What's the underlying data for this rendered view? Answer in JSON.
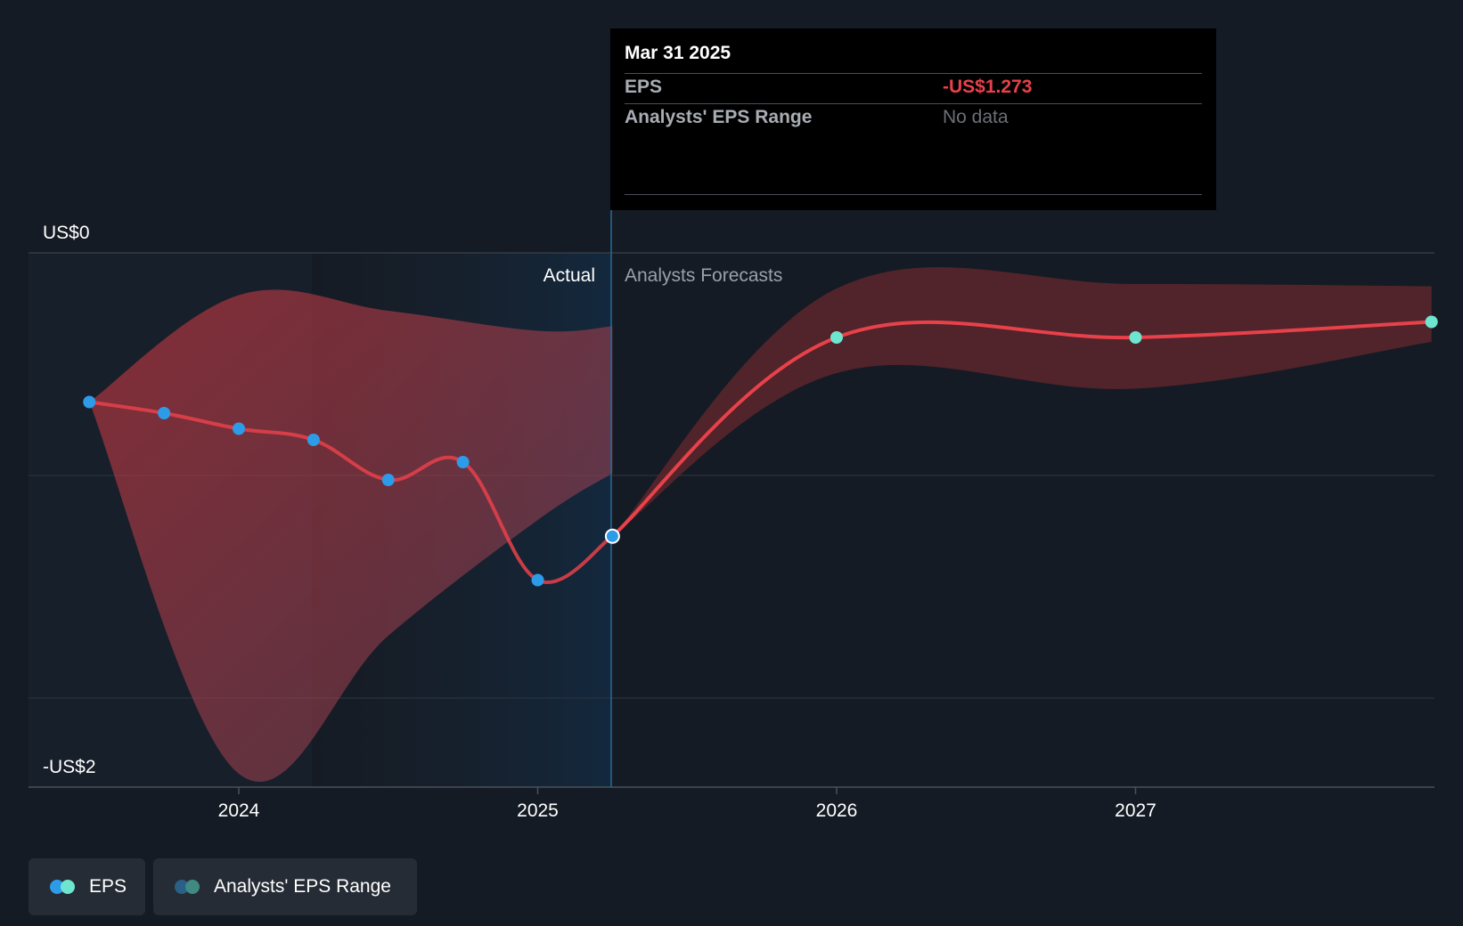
{
  "chart_data": {
    "type": "line",
    "y_axis_labels": [
      "US$0",
      "-US$2"
    ],
    "ylim": [
      -2.4,
      0
    ],
    "x_ticks": [
      "2024",
      "2025",
      "2026",
      "2027"
    ],
    "regions": {
      "actual_label": "Actual",
      "forecast_label": "Analysts Forecasts",
      "divider_date": "Mar 31 2025"
    },
    "series": [
      {
        "name": "EPS",
        "kind": "actual",
        "points": [
          {
            "x": 2023.5,
            "y": -0.67
          },
          {
            "x": 2023.75,
            "y": -0.72
          },
          {
            "x": 2024.0,
            "y": -0.79
          },
          {
            "x": 2024.25,
            "y": -0.84
          },
          {
            "x": 2024.5,
            "y": -1.02
          },
          {
            "x": 2024.75,
            "y": -0.94
          },
          {
            "x": 2025.0,
            "y": -1.47
          },
          {
            "x": 2025.25,
            "y": -1.273
          }
        ]
      },
      {
        "name": "EPS",
        "kind": "forecast",
        "points": [
          {
            "x": 2025.25,
            "y": -1.273
          },
          {
            "x": 2026.0,
            "y": -0.38
          },
          {
            "x": 2027.0,
            "y": -0.38
          },
          {
            "x": 2027.99,
            "y": -0.31
          }
        ]
      }
    ],
    "ranges": [
      {
        "name": "Analysts' EPS Range",
        "kind": "actual",
        "upper": [
          {
            "x": 2023.5,
            "y": -0.67
          },
          {
            "x": 2024.0,
            "y": -0.19
          },
          {
            "x": 2024.5,
            "y": -0.26
          },
          {
            "x": 2025.0,
            "y": -0.35
          },
          {
            "x": 2025.25,
            "y": -0.33
          }
        ],
        "lower": [
          {
            "x": 2025.25,
            "y": -0.99
          },
          {
            "x": 2025.0,
            "y": -1.2
          },
          {
            "x": 2024.5,
            "y": -1.72
          },
          {
            "x": 2024.0,
            "y": -2.34
          },
          {
            "x": 2023.5,
            "y": -0.67
          }
        ]
      },
      {
        "name": "Analysts' EPS Range",
        "kind": "forecast",
        "upper": [
          {
            "x": 2025.25,
            "y": -1.273
          },
          {
            "x": 2026.0,
            "y": -0.16
          },
          {
            "x": 2027.0,
            "y": -0.14
          },
          {
            "x": 2027.99,
            "y": -0.15
          }
        ],
        "lower": [
          {
            "x": 2027.99,
            "y": -0.4
          },
          {
            "x": 2027.0,
            "y": -0.61
          },
          {
            "x": 2026.0,
            "y": -0.54
          },
          {
            "x": 2025.25,
            "y": -1.273
          }
        ]
      }
    ],
    "colors": {
      "eps_line": "#e8414a",
      "actual_point": "#2d9be8",
      "forecast_point": "#6ee6cf",
      "range_actual": "#b8343c",
      "range_forecast": "#5a262c",
      "actual_shade": "#13283d"
    },
    "legend_position": "bottom-left"
  },
  "tooltip": {
    "date": "Mar 31 2025",
    "rows": [
      {
        "label": "EPS",
        "value": "-US$1.273"
      },
      {
        "label": "Analysts' EPS Range",
        "value": "No data"
      }
    ]
  },
  "legend": [
    {
      "label": "EPS",
      "colors": [
        "#2d9be8",
        "#6ee6cf"
      ]
    },
    {
      "label": "Analysts' EPS Range",
      "colors": [
        "#2a5f86",
        "#3f8a82"
      ]
    }
  ]
}
